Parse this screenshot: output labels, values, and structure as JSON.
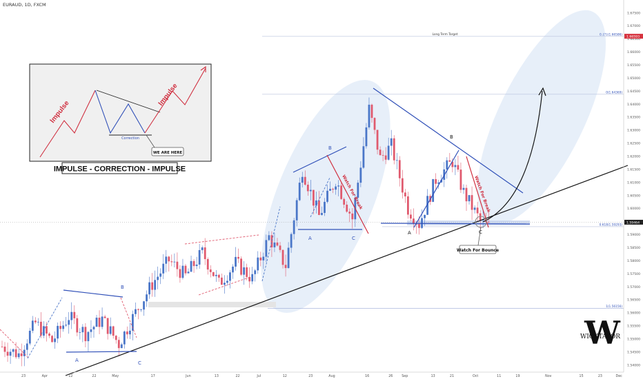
{
  "symbol": "EURAUD, 1D, FXCM",
  "chart_data": {
    "type": "candlestick",
    "y_ticks": [
      "1.67500",
      "1.67000",
      "1.66500",
      "1.66000",
      "1.65500",
      "1.65000",
      "1.64500",
      "1.64000",
      "1.63500",
      "1.63000",
      "1.62500",
      "1.62000",
      "1.61500",
      "1.61000",
      "1.60500",
      "1.60000",
      "1.59500",
      "1.59000",
      "1.58500",
      "1.58000",
      "1.57500",
      "1.57000",
      "1.56500",
      "1.56000",
      "1.55500",
      "1.55000",
      "1.54500",
      "1.54000"
    ],
    "ylim": [
      1.5385,
      1.6785
    ],
    "x_ticks": [
      {
        "label": "23",
        "date": "2024-03-23"
      },
      {
        "label": "Apr",
        "date": "2024-04-01"
      },
      {
        "label": "12",
        "date": "2024-04-12"
      },
      {
        "label": "22",
        "date": "2024-04-22"
      },
      {
        "label": "May",
        "date": "2024-05-01"
      },
      {
        "label": "17",
        "date": "2024-05-17"
      },
      {
        "label": "Jun",
        "date": "2024-06-01"
      },
      {
        "label": "13",
        "date": "2024-06-13"
      },
      {
        "label": "22",
        "date": "2024-06-22"
      },
      {
        "label": "Jul",
        "date": "2024-07-01"
      },
      {
        "label": "12",
        "date": "2024-07-12"
      },
      {
        "label": "23",
        "date": "2024-07-23"
      },
      {
        "label": "Aug",
        "date": "2024-08-01"
      },
      {
        "label": "16",
        "date": "2024-08-16"
      },
      {
        "label": "26",
        "date": "2024-08-26"
      },
      {
        "label": "Sep",
        "date": "2024-09-01"
      },
      {
        "label": "13",
        "date": "2024-09-13"
      },
      {
        "label": "21",
        "date": "2024-09-21"
      },
      {
        "label": "Oct",
        "date": "2024-10-01"
      },
      {
        "label": "11",
        "date": "2024-10-11"
      },
      {
        "label": "19",
        "date": "2024-10-19"
      },
      {
        "label": "Nov",
        "date": "2024-11-01"
      },
      {
        "label": "15",
        "date": "2024-11-15"
      },
      {
        "label": "23",
        "date": "2024-11-23"
      },
      {
        "label": "Dec",
        "date": "2024-12-01"
      }
    ],
    "xlim": [
      "2024-03-13",
      "2024-12-03"
    ],
    "current_price": {
      "label": "1.59464",
      "value": 1.59464
    },
    "target_price": {
      "label": "1.66593",
      "value": 1.66593
    },
    "fib_levels": [
      {
        "name": "Long Term Target",
        "label": "0.{?}(1.66586)",
        "value": 1.66586
      },
      {
        "name": "",
        "label": "0(1.64369)",
        "value": 1.64369
      },
      {
        "name": "",
        "label": "0.618(1.59293)",
        "value": 1.59293
      },
      {
        "name": "",
        "label": "1(1.56156)",
        "value": 1.56156
      }
    ],
    "wave_labels": [
      "A",
      "B",
      "C",
      "A",
      "C",
      "A",
      "B",
      "C"
    ],
    "annotations": {
      "watch_break_1": "Watch For Break",
      "watch_break_2": "Watch For Break",
      "watch_bounce": "Watch For Bounce"
    },
    "legend": "none",
    "grid": false
  },
  "inset": {
    "title": "IMPULSE - CORRECTION - IMPULSE",
    "impulse_left": "Impulse",
    "impulse_right": "Impulse",
    "correction": "Correction",
    "we_are_here": "WE ARE HERE"
  },
  "watermark": {
    "mono": "W",
    "name": "WICKTATOR"
  },
  "colors": {
    "bull": "#4a76c8",
    "bear": "#e05a6e",
    "trend": "#111111",
    "blue_line": "#3050b8",
    "red_line": "#d03040",
    "ellipse": "#dfe9f7"
  }
}
